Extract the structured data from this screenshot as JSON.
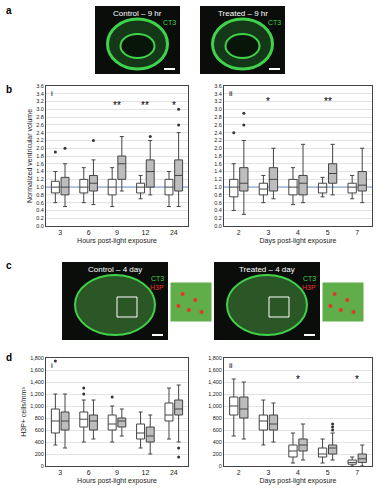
{
  "figure_labels": [
    "a",
    "b",
    "c",
    "d"
  ],
  "image_panels": [
    {
      "label": "Control – 9 hr",
      "stains": [
        {
          "text": "CT3",
          "color": "#3fd24a"
        }
      ]
    },
    {
      "label": "Treated – 9 hr",
      "stains": [
        {
          "text": "CT3",
          "color": "#3fd24a"
        }
      ]
    },
    {
      "label": "Control – 4 day",
      "stains": [
        {
          "text": "CT3",
          "color": "#3fd24a"
        },
        {
          "text": "H3P",
          "color": "#e8322a"
        }
      ]
    },
    {
      "label": "Treated – 4 day",
      "stains": [
        {
          "text": "CT3",
          "color": "#3fd24a"
        },
        {
          "text": "H3P",
          "color": "#e8322a"
        }
      ]
    }
  ],
  "chart_data": [
    {
      "type": "box",
      "subpanel": "i",
      "x_label": "Hours post-light exposure",
      "y_label": "Normalized ventricular volume",
      "categories": [
        "3",
        "6",
        "9",
        "12",
        "24"
      ],
      "grid": true,
      "reference_value": 1,
      "ylim": [
        0,
        3.6
      ],
      "yticks": [
        {
          "value": 0,
          "label": "0.0"
        },
        0.2,
        0.4,
        0.6,
        0.8,
        {
          "value": 1,
          "label": "1.0"
        },
        1.2,
        1.4,
        1.6,
        1.8,
        {
          "value": 2,
          "label": "2.0"
        },
        2.2,
        2.4,
        2.6,
        2.8,
        {
          "value": 3,
          "label": "3.0"
        },
        3.2,
        3.4,
        3.6
      ],
      "series": [
        {
          "color": "#ffffff",
          "boxes": [
            {
              "q1": 0.85,
              "median": 1.0,
              "q3": 1.15,
              "lower": 0.6,
              "upper": 1.4,
              "outliers": [
                1.9
              ]
            },
            {
              "q1": 0.85,
              "median": 1.0,
              "q3": 1.2,
              "lower": 0.6,
              "upper": 1.5,
              "outliers": []
            },
            {
              "q1": 0.8,
              "median": 1.0,
              "q3": 1.2,
              "lower": 0.5,
              "upper": 1.5,
              "outliers": []
            },
            {
              "q1": 0.85,
              "median": 1.0,
              "q3": 1.1,
              "lower": 0.7,
              "upper": 1.3,
              "outliers": []
            },
            {
              "q1": 0.8,
              "median": 1.0,
              "q3": 1.2,
              "lower": 0.5,
              "upper": 1.4,
              "outliers": []
            }
          ]
        },
        {
          "color": "#bdbdbd",
          "boxes": [
            {
              "q1": 0.8,
              "median": 1.0,
              "q3": 1.25,
              "lower": 0.5,
              "upper": 1.6,
              "outliers": [
                2.0
              ]
            },
            {
              "q1": 0.9,
              "median": 1.1,
              "q3": 1.3,
              "lower": 0.55,
              "upper": 1.7,
              "outliers": [
                2.2
              ]
            },
            {
              "q1": 1.2,
              "median": 1.6,
              "q3": 1.8,
              "lower": 0.9,
              "upper": 2.3,
              "outliers": []
            },
            {
              "q1": 1.0,
              "median": 1.4,
              "q3": 1.7,
              "lower": 0.8,
              "upper": 2.2,
              "outliers": [
                2.3
              ]
            },
            {
              "q1": 0.9,
              "median": 1.3,
              "q3": 1.7,
              "lower": 0.5,
              "upper": 2.4,
              "outliers": [
                2.6,
                3.0
              ]
            }
          ]
        }
      ],
      "annotations": [
        {
          "category": "9",
          "text": "**",
          "y": 3.1
        },
        {
          "category": "12",
          "text": "**",
          "y": 3.1
        },
        {
          "category": "24",
          "text": "*",
          "y": 3.1
        }
      ]
    },
    {
      "type": "box",
      "subpanel": "ii",
      "x_label": "Days post-light exposure",
      "categories": [
        "2",
        "3",
        "4",
        "5",
        "7"
      ],
      "grid": true,
      "reference_value": 1,
      "ylim": [
        0,
        3.6
      ],
      "yticks": [
        {
          "value": 0,
          "label": "0.0"
        },
        0.2,
        0.4,
        0.6,
        0.8,
        {
          "value": 1,
          "label": "1.0"
        },
        1.2,
        1.4,
        1.6,
        1.8,
        {
          "value": 2,
          "label": "2.0"
        },
        2.2,
        2.4,
        2.6,
        2.8,
        {
          "value": 3,
          "label": "3.0"
        },
        3.2,
        3.4,
        3.6
      ],
      "series": [
        {
          "color": "#ffffff",
          "boxes": [
            {
              "q1": 0.75,
              "median": 1.0,
              "q3": 1.2,
              "lower": 0.4,
              "upper": 1.6,
              "outliers": [
                2.4
              ]
            },
            {
              "q1": 0.8,
              "median": 0.95,
              "q3": 1.1,
              "lower": 0.6,
              "upper": 1.3,
              "outliers": []
            },
            {
              "q1": 0.8,
              "median": 1.0,
              "q3": 1.2,
              "lower": 0.55,
              "upper": 1.5,
              "outliers": []
            },
            {
              "q1": 0.85,
              "median": 1.0,
              "q3": 1.1,
              "lower": 0.75,
              "upper": 1.25,
              "outliers": []
            },
            {
              "q1": 0.85,
              "median": 1.0,
              "q3": 1.1,
              "lower": 0.7,
              "upper": 1.3,
              "outliers": []
            }
          ]
        },
        {
          "color": "#bdbdbd",
          "boxes": [
            {
              "q1": 0.9,
              "median": 1.1,
              "q3": 1.5,
              "lower": 0.3,
              "upper": 2.2,
              "outliers": [
                2.6,
                2.9
              ]
            },
            {
              "q1": 0.9,
              "median": 1.2,
              "q3": 1.5,
              "lower": 0.7,
              "upper": 2.0,
              "outliers": []
            },
            {
              "q1": 0.8,
              "median": 1.1,
              "q3": 1.3,
              "lower": 0.6,
              "upper": 2.1,
              "outliers": []
            },
            {
              "q1": 1.1,
              "median": 1.35,
              "q3": 1.6,
              "lower": 0.8,
              "upper": 2.1,
              "outliers": []
            },
            {
              "q1": 0.9,
              "median": 1.05,
              "q3": 1.4,
              "lower": 0.6,
              "upper": 2.0,
              "outliers": []
            }
          ]
        }
      ],
      "annotations": [
        {
          "category": "3",
          "text": "*",
          "y": 3.2
        },
        {
          "category": "5",
          "text": "**",
          "y": 3.2
        }
      ]
    },
    {
      "type": "box",
      "subpanel": "i",
      "x_label": "Hours post-light exposure",
      "y_label": "H3P+ cells/mm³",
      "categories": [
        "3",
        "6",
        "9",
        "12",
        "24"
      ],
      "grid": true,
      "ylim": [
        0,
        1800
      ],
      "yticks": [
        0,
        200,
        400,
        600,
        800,
        {
          "value": 1000,
          "label": "1,000"
        },
        {
          "value": 1200,
          "label": "1,200"
        },
        {
          "value": 1400,
          "label": "1,400"
        },
        {
          "value": 1600,
          "label": "1,600"
        },
        {
          "value": 1800,
          "label": "1,800"
        }
      ],
      "series": [
        {
          "color": "#ffffff",
          "boxes": [
            {
              "q1": 550,
              "median": 750,
              "q3": 950,
              "lower": 350,
              "upper": 1200,
              "outliers": [
                1750
              ]
            },
            {
              "q1": 650,
              "median": 780,
              "q3": 900,
              "lower": 400,
              "upper": 1100,
              "outliers": [
                1200,
                1300
              ]
            },
            {
              "q1": 600,
              "median": 700,
              "q3": 850,
              "lower": 400,
              "upper": 1000,
              "outliers": [
                1150
              ]
            },
            {
              "q1": 450,
              "median": 550,
              "q3": 700,
              "lower": 300,
              "upper": 900,
              "outliers": []
            },
            {
              "q1": 750,
              "median": 850,
              "q3": 1050,
              "lower": 450,
              "upper": 1300,
              "outliers": []
            }
          ]
        },
        {
          "color": "#bdbdbd",
          "boxes": [
            {
              "q1": 600,
              "median": 750,
              "q3": 900,
              "lower": 300,
              "upper": 1200,
              "outliers": []
            },
            {
              "q1": 600,
              "median": 750,
              "q3": 850,
              "lower": 450,
              "upper": 1100,
              "outliers": []
            },
            {
              "q1": 650,
              "median": 750,
              "q3": 800,
              "lower": 500,
              "upper": 950,
              "outliers": []
            },
            {
              "q1": 400,
              "median": 500,
              "q3": 650,
              "lower": 200,
              "upper": 850,
              "outliers": []
            },
            {
              "q1": 850,
              "median": 950,
              "q3": 1100,
              "lower": 400,
              "upper": 1350,
              "outliers": [
                300,
                150
              ]
            }
          ]
        }
      ],
      "annotations": []
    },
    {
      "type": "box",
      "subpanel": "ii",
      "x_label": "Days post-light exposure",
      "categories": [
        "2",
        "3",
        "4",
        "5",
        "7"
      ],
      "grid": true,
      "ylim": [
        0,
        1800
      ],
      "yticks": [
        0,
        200,
        400,
        600,
        800,
        {
          "value": 1000,
          "label": "1,000"
        },
        {
          "value": 1200,
          "label": "1,200"
        },
        {
          "value": 1400,
          "label": "1,400"
        },
        {
          "value": 1600,
          "label": "1,600"
        },
        {
          "value": 1800,
          "label": "1,800"
        }
      ],
      "series": [
        {
          "color": "#ffffff",
          "boxes": [
            {
              "q1": 850,
              "median": 1000,
              "q3": 1150,
              "lower": 500,
              "upper": 1450,
              "outliers": []
            },
            {
              "q1": 600,
              "median": 750,
              "q3": 850,
              "lower": 350,
              "upper": 1100,
              "outliers": []
            },
            {
              "q1": 150,
              "median": 250,
              "q3": 350,
              "lower": 50,
              "upper": 550,
              "outliers": []
            },
            {
              "q1": 150,
              "median": 200,
              "q3": 300,
              "lower": 50,
              "upper": 450,
              "outliers": []
            },
            {
              "q1": 30,
              "median": 60,
              "q3": 100,
              "lower": 0,
              "upper": 150,
              "outliers": []
            }
          ]
        },
        {
          "color": "#bdbdbd",
          "boxes": [
            {
              "q1": 800,
              "median": 950,
              "q3": 1150,
              "lower": 450,
              "upper": 1400,
              "outliers": []
            },
            {
              "q1": 600,
              "median": 700,
              "q3": 850,
              "lower": 400,
              "upper": 1050,
              "outliers": []
            },
            {
              "q1": 250,
              "median": 350,
              "q3": 450,
              "lower": 100,
              "upper": 700,
              "outliers": []
            },
            {
              "q1": 200,
              "median": 300,
              "q3": 350,
              "lower": 100,
              "upper": 550,
              "outliers": [
                600,
                650,
                700
              ]
            },
            {
              "q1": 60,
              "median": 120,
              "q3": 200,
              "lower": 0,
              "upper": 350,
              "outliers": []
            }
          ]
        }
      ],
      "annotations": [
        {
          "category": "4",
          "text": "*",
          "y": 1450
        },
        {
          "category": "7",
          "text": "*",
          "y": 1450
        }
      ]
    }
  ]
}
